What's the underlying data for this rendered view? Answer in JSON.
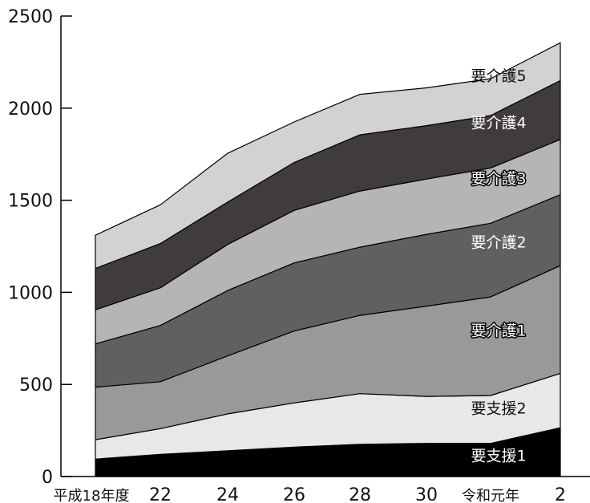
{
  "chart_data": {
    "type": "area",
    "stacked": true,
    "title": "",
    "xlabel": "",
    "ylabel": "",
    "ylim": [
      0,
      2500
    ],
    "y_ticks": [
      0,
      500,
      1000,
      1500,
      2000,
      2500
    ],
    "x_tick_labels": [
      "平成18年度",
      "22",
      "24",
      "26",
      "28",
      "30",
      "令和元年",
      "2"
    ],
    "series": [
      {
        "name": "要支援1",
        "color": "#000000",
        "label_color": "#ffffff",
        "label_outline": "#000000",
        "values": [
          95,
          120,
          140,
          160,
          175,
          180,
          180,
          265
        ]
      },
      {
        "name": "要支援2",
        "color": "#e8e8e8",
        "label_color": "#111111",
        "label_outline": "none",
        "values": [
          105,
          140,
          200,
          240,
          275,
          255,
          260,
          295
        ]
      },
      {
        "name": "要介護1",
        "color": "#999999",
        "label_color": "#ffffff",
        "label_outline": "#000000",
        "values": [
          285,
          255,
          315,
          390,
          425,
          490,
          535,
          585
        ]
      },
      {
        "name": "要介護2",
        "color": "#606060",
        "label_color": "#ffffff",
        "label_outline": "none",
        "values": [
          235,
          305,
          355,
          370,
          370,
          390,
          400,
          385
        ]
      },
      {
        "name": "要介護3",
        "color": "#b5b5b5",
        "label_color": "#ffffff",
        "label_outline": "#000000",
        "values": [
          185,
          205,
          250,
          285,
          305,
          300,
          300,
          300
        ]
      },
      {
        "name": "要介護4",
        "color": "#403c3b",
        "label_color": "#ffffff",
        "label_outline": "none",
        "values": [
          225,
          240,
          230,
          260,
          305,
          290,
          285,
          320
        ]
      },
      {
        "name": "要介護5",
        "color": "#d2d2d3",
        "label_color": "#111111",
        "label_outline": "none",
        "values": [
          180,
          210,
          265,
          220,
          220,
          205,
          200,
          205
        ]
      }
    ]
  }
}
